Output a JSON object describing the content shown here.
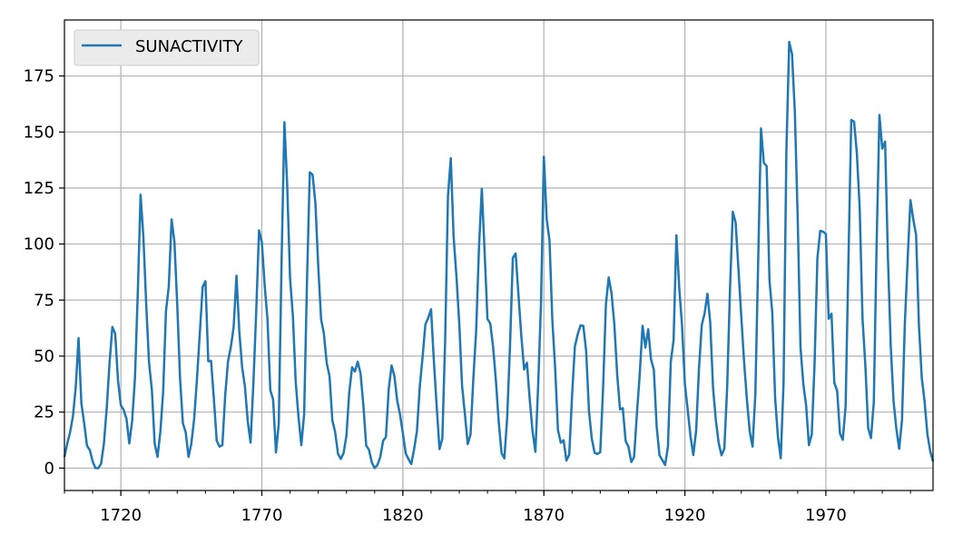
{
  "chart_data": {
    "type": "line",
    "title": "",
    "xlabel": "",
    "ylabel": "",
    "xlim": [
      1700,
      2008
    ],
    "ylim": [
      -10,
      200
    ],
    "grid": true,
    "legend_position": "top-left",
    "xticks": [
      1720,
      1770,
      1820,
      1870,
      1920,
      1970
    ],
    "yticks": [
      0,
      25,
      50,
      75,
      100,
      125,
      150,
      175
    ],
    "series": [
      {
        "name": "SUNACTIVITY",
        "color": "#1f77b4",
        "x": [
          1700,
          1701,
          1702,
          1703,
          1704,
          1705,
          1706,
          1707,
          1708,
          1709,
          1710,
          1711,
          1712,
          1713,
          1714,
          1715,
          1716,
          1717,
          1718,
          1719,
          1720,
          1721,
          1722,
          1723,
          1724,
          1725,
          1726,
          1727,
          1728,
          1729,
          1730,
          1731,
          1732,
          1733,
          1734,
          1735,
          1736,
          1737,
          1738,
          1739,
          1740,
          1741,
          1742,
          1743,
          1744,
          1745,
          1746,
          1747,
          1748,
          1749,
          1750,
          1751,
          1752,
          1753,
          1754,
          1755,
          1756,
          1757,
          1758,
          1759,
          1760,
          1761,
          1762,
          1763,
          1764,
          1765,
          1766,
          1767,
          1768,
          1769,
          1770,
          1771,
          1772,
          1773,
          1774,
          1775,
          1776,
          1777,
          1778,
          1779,
          1780,
          1781,
          1782,
          1783,
          1784,
          1785,
          1786,
          1787,
          1788,
          1789,
          1790,
          1791,
          1792,
          1793,
          1794,
          1795,
          1796,
          1797,
          1798,
          1799,
          1800,
          1801,
          1802,
          1803,
          1804,
          1805,
          1806,
          1807,
          1808,
          1809,
          1810,
          1811,
          1812,
          1813,
          1814,
          1815,
          1816,
          1817,
          1818,
          1819,
          1820,
          1821,
          1822,
          1823,
          1824,
          1825,
          1826,
          1827,
          1828,
          1829,
          1830,
          1831,
          1832,
          1833,
          1834,
          1835,
          1836,
          1837,
          1838,
          1839,
          1840,
          1841,
          1842,
          1843,
          1844,
          1845,
          1846,
          1847,
          1848,
          1849,
          1850,
          1851,
          1852,
          1853,
          1854,
          1855,
          1856,
          1857,
          1858,
          1859,
          1860,
          1861,
          1862,
          1863,
          1864,
          1865,
          1866,
          1867,
          1868,
          1869,
          1870,
          1871,
          1872,
          1873,
          1874,
          1875,
          1876,
          1877,
          1878,
          1879,
          1880,
          1881,
          1882,
          1883,
          1884,
          1885,
          1886,
          1887,
          1888,
          1889,
          1890,
          1891,
          1892,
          1893,
          1894,
          1895,
          1896,
          1897,
          1898,
          1899,
          1900,
          1901,
          1902,
          1903,
          1904,
          1905,
          1906,
          1907,
          1908,
          1909,
          1910,
          1911,
          1912,
          1913,
          1914,
          1915,
          1916,
          1917,
          1918,
          1919,
          1920,
          1921,
          1922,
          1923,
          1924,
          1925,
          1926,
          1927,
          1928,
          1929,
          1930,
          1931,
          1932,
          1933,
          1934,
          1935,
          1936,
          1937,
          1938,
          1939,
          1940,
          1941,
          1942,
          1943,
          1944,
          1945,
          1946,
          1947,
          1948,
          1949,
          1950,
          1951,
          1952,
          1953,
          1954,
          1955,
          1956,
          1957,
          1958,
          1959,
          1960,
          1961,
          1962,
          1963,
          1964,
          1965,
          1966,
          1967,
          1968,
          1969,
          1970,
          1971,
          1972,
          1973,
          1974,
          1975,
          1976,
          1977,
          1978,
          1979,
          1980,
          1981,
          1982,
          1983,
          1984,
          1985,
          1986,
          1987,
          1988,
          1989,
          1990,
          1991,
          1992,
          1993,
          1994,
          1995,
          1996,
          1997,
          1998,
          1999,
          2000,
          2001,
          2002,
          2003,
          2004,
          2005,
          2006,
          2007,
          2008
        ],
        "values": [
          5,
          11,
          16,
          23,
          36,
          58,
          29,
          20,
          10,
          8,
          3,
          0,
          0,
          2,
          11,
          27,
          47,
          63,
          60,
          39,
          28,
          26,
          22,
          11,
          21,
          40,
          78,
          122,
          103,
          73,
          47,
          35,
          11,
          5,
          16,
          34,
          70,
          81,
          111,
          101,
          73,
          40,
          20,
          16,
          5,
          11,
          22,
          40,
          60,
          80.9,
          83.4,
          47.7,
          47.8,
          30.7,
          12.2,
          9.6,
          10.2,
          32.4,
          47.6,
          54,
          62.9,
          85.9,
          61.2,
          45.1,
          36.4,
          20.9,
          11.4,
          37.8,
          69.8,
          106.1,
          100.8,
          81.6,
          66.5,
          34.8,
          30.6,
          7,
          19.8,
          92.5,
          154.4,
          125.9,
          84.8,
          68.1,
          38.5,
          22.8,
          10.2,
          24.1,
          82.9,
          132,
          130.9,
          118.1,
          89.9,
          66.6,
          60,
          46.9,
          41,
          21.3,
          16,
          6.4,
          4.1,
          6.8,
          14.5,
          34,
          45,
          43.1,
          47.5,
          42.2,
          28.1,
          10.1,
          8.1,
          2.5,
          0,
          1.4,
          5,
          12.2,
          13.9,
          35.4,
          45.8,
          41.1,
          30.1,
          23.9,
          15.6,
          6.6,
          4,
          1.8,
          8.5,
          16.6,
          36.3,
          49.6,
          64.2,
          67,
          70.9,
          47.8,
          27.5,
          8.5,
          13.2,
          56.9,
          121.5,
          138.3,
          103.2,
          85.7,
          64.6,
          36.7,
          24.2,
          10.7,
          15,
          40.1,
          61.5,
          98.5,
          124.7,
          96.3,
          66.6,
          64.5,
          54.1,
          39,
          20.6,
          6.7,
          4.3,
          22.7,
          54.8,
          93.8,
          95.8,
          77.2,
          59.1,
          44,
          47,
          30.5,
          16.3,
          7.3,
          37.6,
          74,
          139,
          111.2,
          101.6,
          66.2,
          44.7,
          17,
          11.3,
          12.4,
          3.4,
          6,
          32.3,
          54.3,
          59.7,
          63.7,
          63.5,
          52.2,
          25.4,
          13.1,
          6.8,
          6.3,
          7.1,
          35.6,
          73,
          85.1,
          78,
          64,
          41.8,
          26.2,
          26.7,
          12.1,
          9.5,
          2.7,
          5,
          24.4,
          42,
          63.5,
          53.8,
          62,
          48.5,
          43.9,
          18.6,
          5.7,
          3.6,
          1.4,
          9.6,
          47.4,
          57.1,
          103.9,
          80.6,
          63.6,
          37.6,
          26.1,
          14.2,
          5.8,
          16.7,
          44.3,
          63.9,
          69,
          77.8,
          64.9,
          35.7,
          21.2,
          11.1,
          5.7,
          8.7,
          36.1,
          79.7,
          114.4,
          109.6,
          88.8,
          67.8,
          47.5,
          30.6,
          16.3,
          9.6,
          33.2,
          92.6,
          151.6,
          136.3,
          134.7,
          83.9,
          69.4,
          31.5,
          13.9,
          4.4,
          38,
          141.7,
          190.2,
          184.8,
          159,
          112.3,
          53.9,
          37.6,
          27.9,
          10.2,
          15.1,
          47,
          93.8,
          105.9,
          105.5,
          104.5,
          66.6,
          68.9,
          38,
          34.5,
          15.5,
          12.6,
          27.5,
          92.5,
          155.4,
          154.6,
          140.4,
          115.9,
          66.6,
          45.9,
          17.9,
          13.4,
          29.4,
          100.2,
          157.6,
          142.6,
          145.7,
          94.3,
          54.6,
          29.9,
          17.5,
          8.6,
          21.5,
          64.3,
          93.3,
          119.6,
          111,
          104,
          63.7,
          40.4,
          29.8,
          15.2,
          7.5,
          2.9
        ]
      }
    ]
  }
}
